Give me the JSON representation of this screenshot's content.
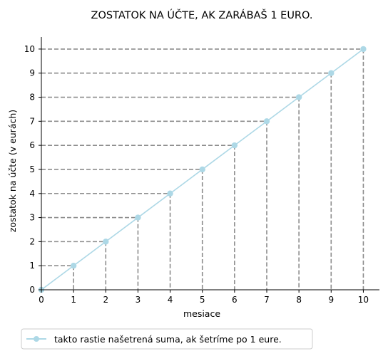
{
  "chart_data": {
    "type": "line",
    "title": "ZOSTATOK NA ÚČTE, AK ZARÁBAŠ 1 EURO.",
    "xlabel": "mesiace",
    "ylabel": "zostatok na účte (v eurách)",
    "xlim": [
      0,
      10.5
    ],
    "ylim": [
      0,
      10.5
    ],
    "xticks": [
      0,
      1,
      2,
      3,
      4,
      5,
      6,
      7,
      8,
      9,
      10
    ],
    "yticks": [
      0,
      1,
      2,
      3,
      4,
      5,
      6,
      7,
      8,
      9,
      10
    ],
    "grid": false,
    "guide_lines": "dashed gray lines from each point to both axes",
    "legend_position": "bottom-left, below the plot",
    "series": [
      {
        "name": "takto rastie našetrená suma, ak šetríme po 1 eure.",
        "color": "#add8e6",
        "marker": "circle",
        "x": [
          0,
          1,
          2,
          3,
          4,
          5,
          6,
          7,
          8,
          9,
          10
        ],
        "y": [
          0,
          1,
          2,
          3,
          4,
          5,
          6,
          7,
          8,
          9,
          10
        ]
      }
    ],
    "guide_color": "#8c8c8c"
  }
}
